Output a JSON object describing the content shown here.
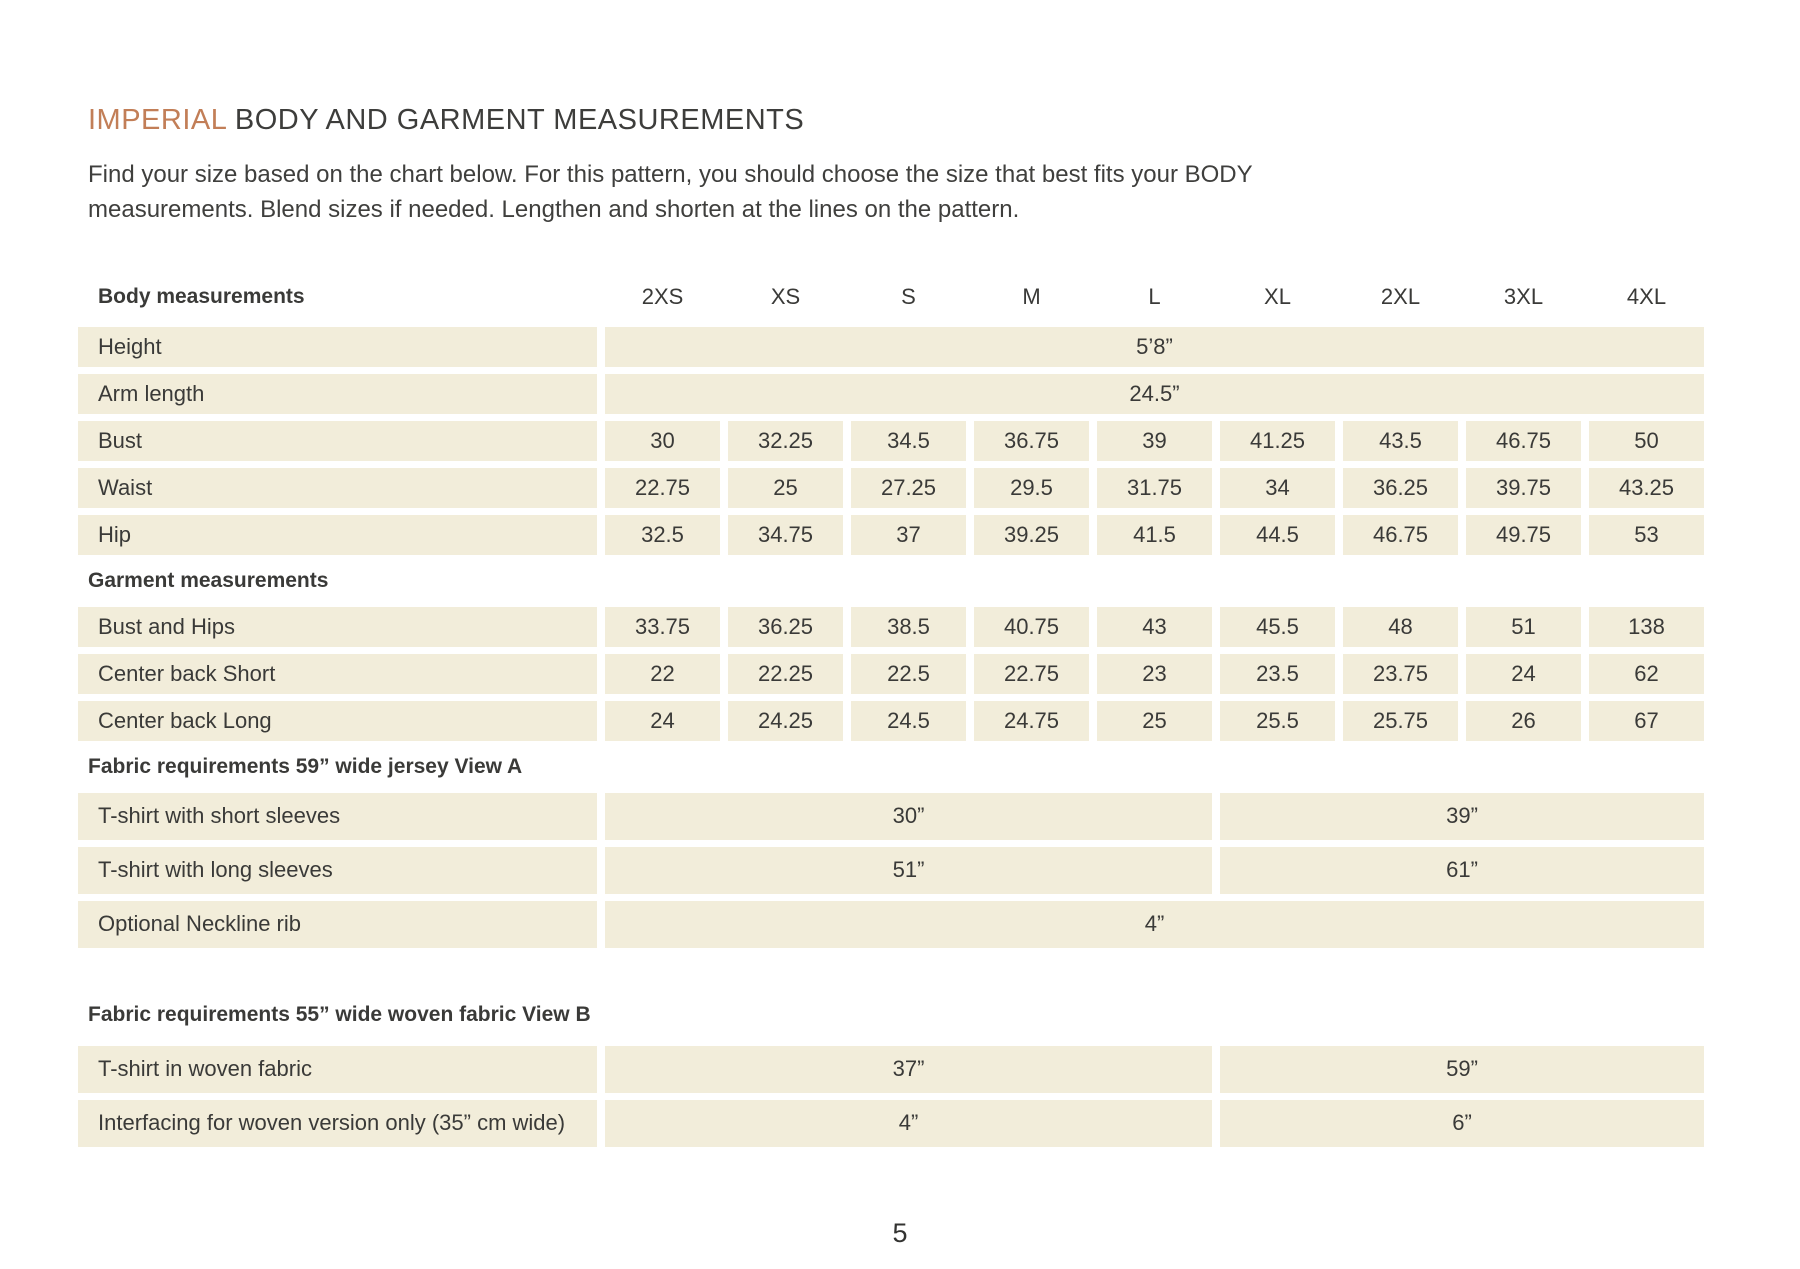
{
  "page": {
    "title_accent": "IMPERIAL",
    "title_rest": " BODY AND GARMENT MEASUREMENTS",
    "intro": "Find your size based on the chart below. For this pattern, you should choose the size that best fits your BODY measurements. Blend sizes if needed. Lengthen and shorten at the lines on the pattern.",
    "page_number": "5"
  },
  "colors": {
    "accent": "#c27e57",
    "cell_background": "#f2edda",
    "text": "#3a3a38"
  },
  "table": {
    "header": {
      "label": "Body measurements",
      "sizes": [
        "2XS",
        "XS",
        "S",
        "M",
        "L",
        "XL",
        "2XL",
        "3XL",
        "4XL"
      ]
    },
    "rows": [
      {
        "type": "span",
        "label": "Height",
        "value": "5’8”"
      },
      {
        "type": "span",
        "label": "Arm length",
        "value": "24.5”"
      },
      {
        "type": "cells",
        "label": "Bust",
        "values": [
          "30",
          "32.25",
          "34.5",
          "36.75",
          "39",
          "41.25",
          "43.5",
          "46.75",
          "50"
        ]
      },
      {
        "type": "cells",
        "label": "Waist",
        "values": [
          "22.75",
          "25",
          "27.25",
          "29.5",
          "31.75",
          "34",
          "36.25",
          "39.75",
          "43.25"
        ]
      },
      {
        "type": "cells",
        "label": "Hip",
        "values": [
          "32.5",
          "34.75",
          "37",
          "39.25",
          "41.5",
          "44.5",
          "46.75",
          "49.75",
          "53"
        ]
      },
      {
        "type": "section",
        "label": "Garment measurements"
      },
      {
        "type": "cells",
        "label": "Bust and Hips",
        "values": [
          "33.75",
          "36.25",
          "38.5",
          "40.75",
          "43",
          "45.5",
          "48",
          "51",
          "138"
        ]
      },
      {
        "type": "cells",
        "label": "Center back Short",
        "values": [
          "22",
          "22.25",
          "22.5",
          "22.75",
          "23",
          "23.5",
          "23.75",
          "24",
          "62"
        ]
      },
      {
        "type": "cells",
        "label": "Center back Long",
        "values": [
          "24",
          "24.25",
          "24.5",
          "24.75",
          "25",
          "25.5",
          "25.75",
          "26",
          "67"
        ]
      },
      {
        "type": "section",
        "label": "Fabric requirements 59” wide jersey View A"
      },
      {
        "type": "split",
        "label": "T-shirt with short sleeves",
        "left": "30”",
        "right": "39”"
      },
      {
        "type": "split",
        "label": "T-shirt with long sleeves",
        "left": "51”",
        "right": "61”"
      },
      {
        "type": "span",
        "label": "Optional Neckline rib",
        "value": "4”"
      },
      {
        "type": "section",
        "label": "Fabric requirements 55”  wide woven fabric View B"
      },
      {
        "type": "split",
        "label": "T-shirt in woven fabric",
        "left": "37”",
        "right": "59”"
      },
      {
        "type": "split",
        "label": "Interfacing for woven version only (35” cm wide)",
        "left": "4”",
        "right": "6”"
      }
    ]
  }
}
